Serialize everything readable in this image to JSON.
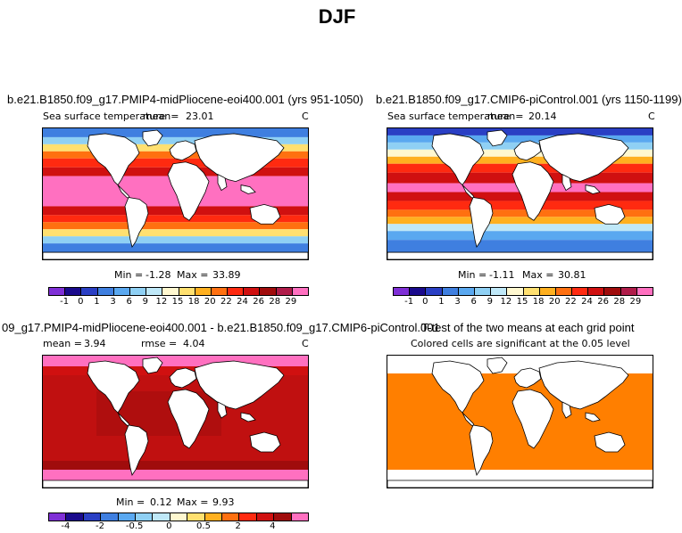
{
  "figure": {
    "title": "DJF",
    "units": "C"
  },
  "panels": {
    "top_left": {
      "title": "b.e21.B1850.f09_g17.PMIP4-midPliocene-eoi400.001 (yrs 951-1050)",
      "variable": "Sea surface temperature",
      "mean_label": "mean=",
      "mean_value": "23.01",
      "units": "C",
      "min_label": "Min =",
      "min_value": "-1.28",
      "max_label": "Max =",
      "max_value": "33.89"
    },
    "top_right": {
      "title": "b.e21.B1850.f09_g17.CMIP6-piControl.001 (yrs 1150-1199)",
      "variable": "Sea surface temperature",
      "mean_label": "mean=",
      "mean_value": "20.14",
      "units": "C",
      "min_label": "Min =",
      "min_value": "-1.11",
      "max_label": "Max =",
      "max_value": "30.81"
    },
    "bottom_left": {
      "title": "09_g17.PMIP4-midPliocene-eoi400.001 - b.e21.B1850.f09_g17.CMIP6-piControl.001",
      "mean_label": "mean =",
      "mean_value": "3.94",
      "rmse_label": "rmse =",
      "rmse_value": "4.04",
      "units": "C",
      "min_label": "Min =",
      "min_value": "0.12",
      "max_label": "Max =",
      "max_value": "9.93"
    },
    "bottom_right": {
      "title": "T-test of the two means at each grid point",
      "subtitle": "Colored cells are significant at the 0.05 level"
    }
  },
  "colorbars": {
    "sst": {
      "colors": [
        "#7f2fd6",
        "#1a0a8c",
        "#2a3fc4",
        "#3f7fe0",
        "#5aa8f0",
        "#8fd0f4",
        "#bfe8f8",
        "#fff8d0",
        "#ffe070",
        "#ffb020",
        "#ff7010",
        "#ff2a10",
        "#d01010",
        "#a00c0c",
        "#b01c4a",
        "#ff70c0"
      ],
      "tick_labels": [
        "-1",
        "0",
        "1",
        "3",
        "6",
        "9",
        "12",
        "15",
        "18",
        "20",
        "22",
        "24",
        "26",
        "28",
        "29"
      ]
    },
    "diff": {
      "colors": [
        "#7f2fd6",
        "#1a0a8c",
        "#2a3fc4",
        "#3f7fe0",
        "#5aa8f0",
        "#8fd0f4",
        "#bfe8f8",
        "#fff8d0",
        "#ffe070",
        "#ffb020",
        "#ff7010",
        "#ff2a10",
        "#d01010",
        "#a00c0c",
        "#ff70c0"
      ],
      "tick_labels": [
        "-4",
        "-2",
        "-0.5",
        "0",
        "0.5",
        "2",
        "4"
      ]
    }
  },
  "map_colors": {
    "land": "#ffffff",
    "coast": "#000000",
    "ttest_fill": "#ff7f00"
  }
}
